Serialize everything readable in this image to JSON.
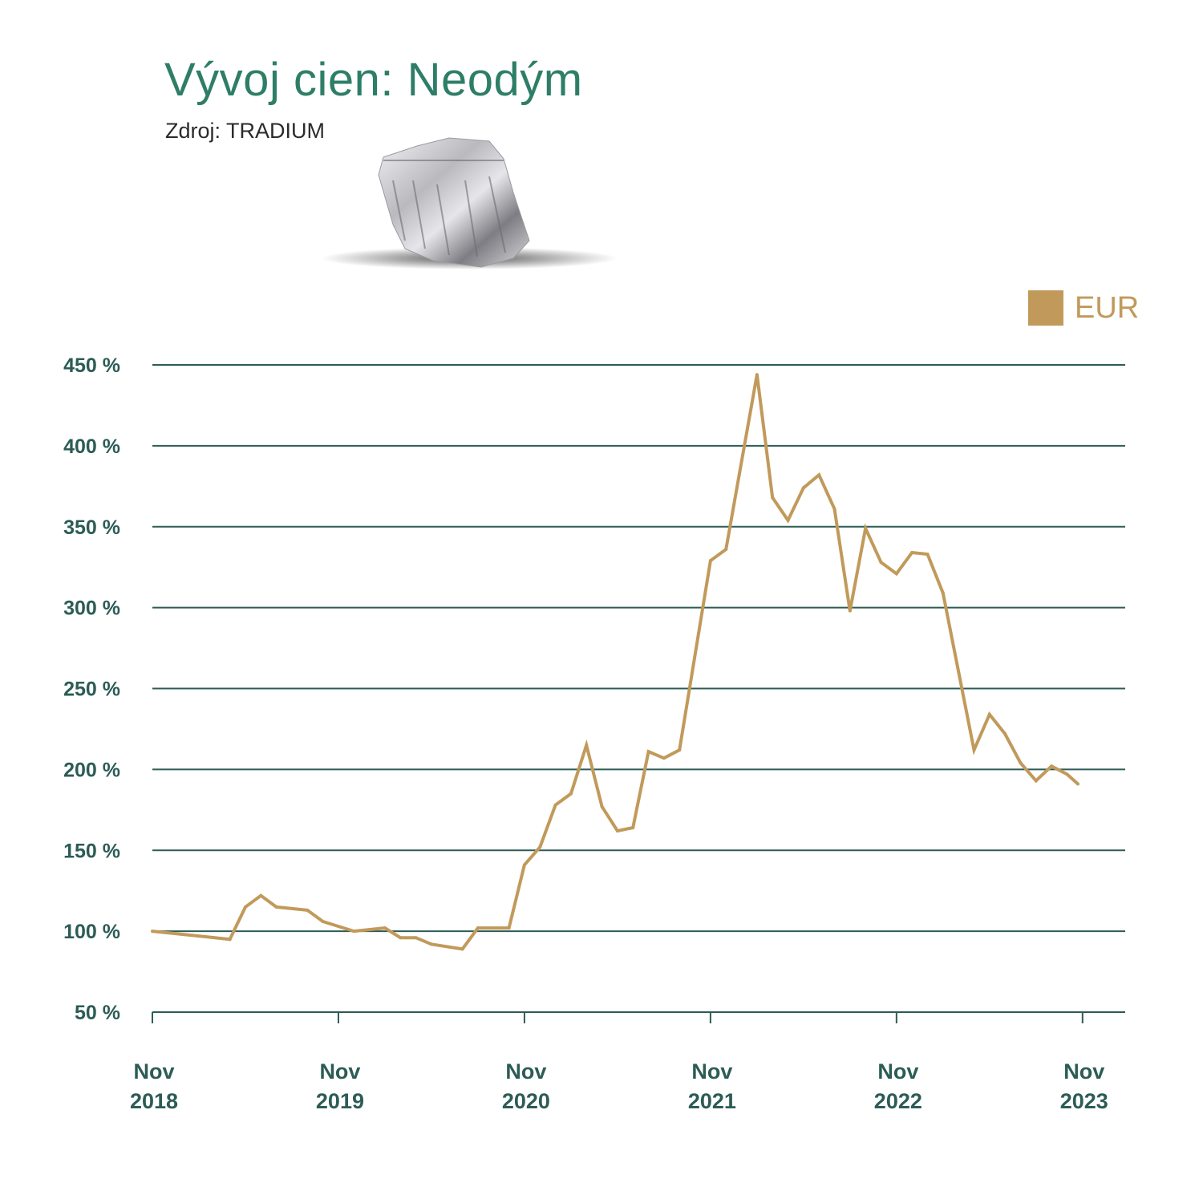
{
  "chart_data": {
    "type": "line",
    "title": "Vývoj cien: Neodým",
    "subtitle": "Zdroj: TRADIUM",
    "xlabel": "",
    "ylabel": "",
    "ylim": [
      50,
      450
    ],
    "yticks": [
      50,
      100,
      150,
      200,
      250,
      300,
      350,
      400,
      450
    ],
    "ytick_labels": [
      "50 %",
      "100 %",
      "150 %",
      "200 %",
      "250 %",
      "300 %",
      "350 %",
      "400 %",
      "450 %"
    ],
    "x_unit": "months since Nov 2018",
    "xlim": [
      0,
      62
    ],
    "xticks": [
      0,
      12,
      24,
      36,
      48,
      60
    ],
    "xtick_labels": [
      [
        "Nov",
        "2018"
      ],
      [
        "Nov",
        "2019"
      ],
      [
        "Nov",
        "2020"
      ],
      [
        "Nov",
        "2021"
      ],
      [
        "Nov",
        "2022"
      ],
      [
        "Nov",
        "2023"
      ]
    ],
    "grid": true,
    "legend": {
      "position": "top-right",
      "entries": [
        "EUR"
      ]
    },
    "series": [
      {
        "name": "EUR",
        "color": "#c19a5b",
        "x": [
          0,
          5,
          6,
          7,
          8,
          10,
          11,
          13,
          15,
          16,
          17,
          18,
          20,
          21,
          23,
          24,
          25,
          26,
          27,
          28,
          29,
          30,
          31,
          32,
          33,
          34,
          36,
          37,
          39,
          40,
          41,
          42,
          43,
          44,
          45,
          46,
          47,
          48,
          49,
          50,
          51,
          53,
          54,
          55,
          56,
          57,
          58,
          59,
          59.7
        ],
        "values": [
          100,
          95,
          115,
          122,
          115,
          113,
          106,
          100,
          102,
          96,
          96,
          92,
          89,
          102,
          102,
          141,
          152,
          178,
          185,
          215,
          177,
          162,
          164,
          211,
          207,
          212,
          329,
          336,
          444,
          368,
          354,
          374,
          382,
          361,
          298,
          349,
          328,
          321,
          334,
          333,
          309,
          212,
          234,
          222,
          204,
          193,
          202,
          197,
          191
        ]
      }
    ]
  },
  "colors": {
    "title": "#2e7e67",
    "axis": "#2c5c55",
    "line": "#c19a5b",
    "grid": "#2c5c55"
  }
}
